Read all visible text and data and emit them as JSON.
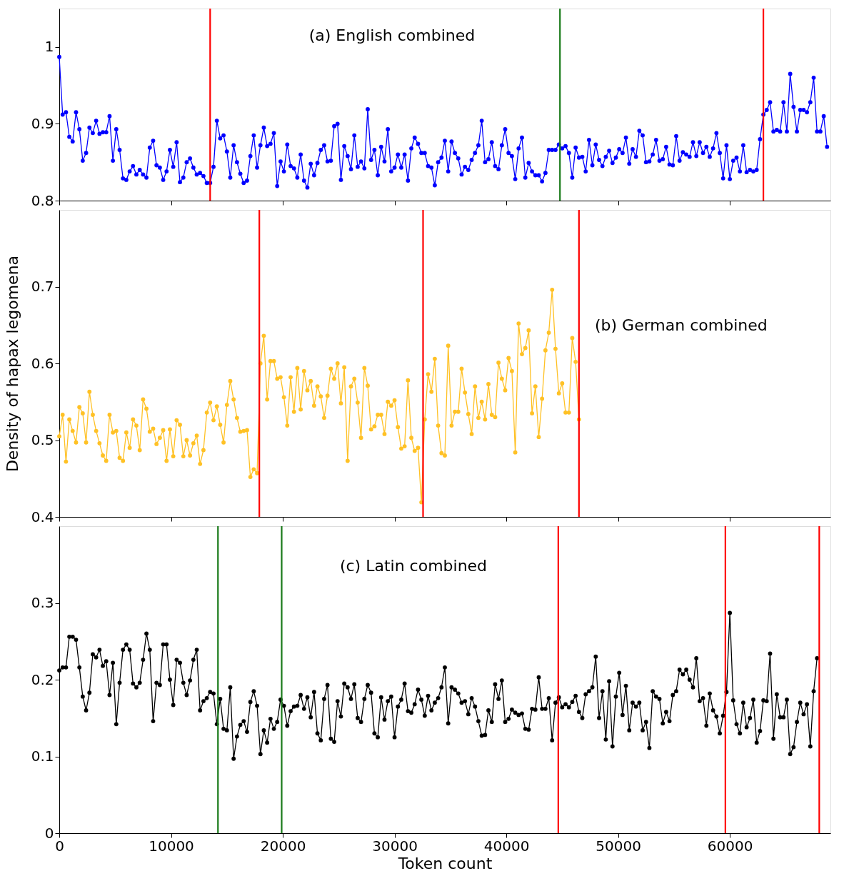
{
  "chart_data": [
    {
      "type": "line",
      "annotations": [
        "(a) English combined"
      ],
      "xlim": [
        0,
        69000
      ],
      "xticks": [
        0,
        10000,
        20000,
        30000,
        40000,
        50000,
        60000
      ],
      "ylim": [
        0.8,
        1.05
      ],
      "yticks": [
        0.8,
        0.9,
        1
      ],
      "tick_labels": "y",
      "grid": false,
      "marker": "circle",
      "line_style": "solid",
      "ref_lines": [
        {
          "axis": "x",
          "value": 13500,
          "color": "#ff0000"
        },
        {
          "axis": "x",
          "value": 44800,
          "color": "#1a7a1a"
        },
        {
          "axis": "x",
          "value": 63000,
          "color": "#ff0000"
        }
      ],
      "series": [
        {
          "color": "#0000ff",
          "x": [
            0,
            300,
            600,
            900,
            1200,
            1500,
            1800,
            2100,
            2400,
            2700,
            3000,
            3300,
            3600,
            3900,
            4200,
            4500,
            4800,
            5100,
            5400,
            5700,
            6000,
            6300,
            6600,
            6900,
            7200,
            7500,
            7800,
            8100,
            8400,
            8700,
            9000,
            9300,
            9600,
            9900,
            10200,
            10500,
            10800,
            11100,
            11400,
            11700,
            12000,
            12300,
            12600,
            12900,
            13200,
            13500,
            13800,
            14100,
            14400,
            14700,
            15000,
            15300,
            15600,
            15900,
            16200,
            16500,
            16800,
            17100,
            17400,
            17700,
            18000,
            18300,
            18600,
            18900,
            19200,
            19500,
            19800,
            20100,
            20400,
            20700,
            21000,
            21300,
            21600,
            21900,
            22200,
            22500,
            22800,
            23100,
            23400,
            23700,
            24000,
            24300,
            24600,
            24900,
            25200,
            25500,
            25800,
            26100,
            26400,
            26700,
            27000,
            27300,
            27600,
            27900,
            28200,
            28500,
            28800,
            29100,
            29400,
            29700,
            30000,
            30300,
            30600,
            30900,
            31200,
            31500,
            31800,
            32100,
            32400,
            32700,
            33000,
            33300,
            33600,
            33900,
            34200,
            34500,
            34800,
            35100,
            35400,
            35700,
            36000,
            36300,
            36600,
            36900,
            37200,
            37500,
            37800,
            38100,
            38400,
            38700,
            39000,
            39300,
            39600,
            39900,
            40200,
            40500,
            40800,
            41100,
            41400,
            41700,
            42000,
            42300,
            42600,
            42900,
            43200,
            43500,
            43800,
            44100,
            44400,
            44700,
            45000,
            45300,
            45600,
            45900,
            46200,
            46500,
            46800,
            47100,
            47400,
            47700,
            48000,
            48300,
            48600,
            48900,
            49200,
            49500,
            49800,
            50100,
            50400,
            50700,
            51000,
            51300,
            51600,
            51900,
            52200,
            52500,
            52800,
            53100,
            53400,
            53700,
            54000,
            54300,
            54600,
            54900,
            55200,
            55500,
            55800,
            56100,
            56400,
            56700,
            57000,
            57300,
            57600,
            57900,
            58200,
            58500,
            58800,
            59100,
            59400,
            59700,
            60000,
            60300,
            60600,
            60900,
            61200,
            61500,
            61800,
            62100,
            62400,
            62700,
            63000,
            63300,
            63600,
            63900,
            64200,
            64500,
            64800,
            65100,
            65400,
            65700,
            66000,
            66300,
            66600,
            66900,
            67200,
            67500,
            67800,
            68100,
            68400,
            68700
          ],
          "values": [
            0.987,
            0.912,
            0.915,
            0.883,
            0.877,
            0.915,
            0.893,
            0.852,
            0.862,
            0.895,
            0.888,
            0.904,
            0.887,
            0.889,
            0.889,
            0.91,
            0.852,
            0.893,
            0.866,
            0.829,
            0.827,
            0.838,
            0.845,
            0.834,
            0.84,
            0.834,
            0.83,
            0.869,
            0.878,
            0.846,
            0.843,
            0.827,
            0.838,
            0.866,
            0.844,
            0.876,
            0.824,
            0.83,
            0.85,
            0.855,
            0.843,
            0.834,
            0.836,
            0.832,
            0.823,
            0.823,
            0.844,
            0.904,
            0.881,
            0.885,
            0.864,
            0.83,
            0.872,
            0.85,
            0.835,
            0.823,
            0.826,
            0.858,
            0.885,
            0.843,
            0.872,
            0.895,
            0.871,
            0.874,
            0.888,
            0.819,
            0.851,
            0.838,
            0.873,
            0.845,
            0.842,
            0.83,
            0.86,
            0.826,
            0.817,
            0.848,
            0.833,
            0.849,
            0.866,
            0.872,
            0.851,
            0.852,
            0.897,
            0.9,
            0.827,
            0.871,
            0.858,
            0.841,
            0.885,
            0.844,
            0.851,
            0.842,
            0.919,
            0.853,
            0.866,
            0.833,
            0.87,
            0.851,
            0.893,
            0.838,
            0.843,
            0.86,
            0.843,
            0.86,
            0.826,
            0.868,
            0.882,
            0.874,
            0.862,
            0.862,
            0.845,
            0.843,
            0.82,
            0.85,
            0.856,
            0.878,
            0.838,
            0.877,
            0.862,
            0.855,
            0.834,
            0.844,
            0.84,
            0.853,
            0.862,
            0.872,
            0.904,
            0.85,
            0.854,
            0.876,
            0.845,
            0.841,
            0.872,
            0.893,
            0.862,
            0.858,
            0.828,
            0.868,
            0.882,
            0.83,
            0.849,
            0.838,
            0.833,
            0.833,
            0.825,
            0.836,
            0.866,
            0.866,
            0.866,
            0.873,
            0.868,
            0.871,
            0.862,
            0.83,
            0.869,
            0.856,
            0.857,
            0.838,
            0.879,
            0.846,
            0.873,
            0.853,
            0.845,
            0.857,
            0.865,
            0.849,
            0.856,
            0.867,
            0.862,
            0.882,
            0.848,
            0.867,
            0.857,
            0.891,
            0.885,
            0.85,
            0.851,
            0.86,
            0.879,
            0.852,
            0.854,
            0.87,
            0.847,
            0.846,
            0.884,
            0.852,
            0.863,
            0.86,
            0.857,
            0.876,
            0.858,
            0.876,
            0.862,
            0.87,
            0.857,
            0.868,
            0.888,
            0.862,
            0.829,
            0.872,
            0.828,
            0.852,
            0.856,
            0.838,
            0.872,
            0.837,
            0.84,
            0.838,
            0.84,
            0.88,
            0.912,
            0.918,
            0.928,
            0.89,
            0.892,
            0.89,
            0.928,
            0.89,
            0.965,
            0.922,
            0.89,
            0.918,
            0.918,
            0.915,
            0.928,
            0.96,
            0.89,
            0.89,
            0.91,
            0.87
          ]
        }
      ]
    },
    {
      "type": "line",
      "annotations": [
        "(b) German combined"
      ],
      "ylabel": "Density of hapax legomena",
      "xlim": [
        0,
        69000
      ],
      "xticks": [
        0,
        10000,
        20000,
        30000,
        40000,
        50000,
        60000
      ],
      "ylim": [
        0.4,
        0.8
      ],
      "yticks": [
        0.4,
        0.5,
        0.6,
        0.7
      ],
      "tick_labels": "y",
      "grid": false,
      "marker": "circle",
      "line_style": "solid",
      "ref_lines": [
        {
          "axis": "x",
          "value": 17900,
          "color": "#ff0000"
        },
        {
          "axis": "x",
          "value": 32550,
          "color": "#ff0000"
        },
        {
          "axis": "x",
          "value": 46500,
          "color": "#ff0000"
        }
      ],
      "series": [
        {
          "color": "#ffc125",
          "x": [
            0,
            300,
            600,
            900,
            1200,
            1500,
            1800,
            2100,
            2400,
            2700,
            3000,
            3300,
            3600,
            3900,
            4200,
            4500,
            4800,
            5100,
            5400,
            5700,
            6000,
            6300,
            6600,
            6900,
            7200,
            7500,
            7800,
            8100,
            8400,
            8700,
            9000,
            9300,
            9600,
            9900,
            10200,
            10500,
            10800,
            11100,
            11400,
            11700,
            12000,
            12300,
            12600,
            12900,
            13200,
            13500,
            13800,
            14100,
            14400,
            14700,
            15000,
            15300,
            15600,
            15900,
            16200,
            16500,
            16800,
            17100,
            17400,
            17700,
            18000,
            18300,
            18600,
            18900,
            19200,
            19500,
            19800,
            20100,
            20400,
            20700,
            21000,
            21300,
            21600,
            21900,
            22200,
            22500,
            22800,
            23100,
            23400,
            23700,
            24000,
            24300,
            24600,
            24900,
            25200,
            25500,
            25800,
            26100,
            26400,
            26700,
            27000,
            27300,
            27600,
            27900,
            28200,
            28500,
            28800,
            29100,
            29400,
            29700,
            30000,
            30300,
            30600,
            30900,
            31200,
            31500,
            31800,
            32100,
            32400,
            32700,
            33000,
            33300,
            33600,
            33900,
            34200,
            34500,
            34800,
            35100,
            35400,
            35700,
            36000,
            36300,
            36600,
            36900,
            37200,
            37500,
            37800,
            38100,
            38400,
            38700,
            39000,
            39300,
            39600,
            39900,
            40200,
            40500,
            40800,
            41100,
            41400,
            41700,
            42000,
            42300,
            42600,
            42900,
            43200,
            43500,
            43800,
            44100,
            44400,
            44700,
            45000,
            45300,
            45600,
            45900,
            46200,
            46500
          ],
          "values": [
            0.505,
            0.533,
            0.472,
            0.527,
            0.512,
            0.497,
            0.543,
            0.535,
            0.497,
            0.563,
            0.533,
            0.512,
            0.496,
            0.48,
            0.473,
            0.533,
            0.51,
            0.512,
            0.477,
            0.473,
            0.51,
            0.49,
            0.527,
            0.519,
            0.487,
            0.553,
            0.541,
            0.511,
            0.515,
            0.495,
            0.503,
            0.513,
            0.473,
            0.514,
            0.479,
            0.526,
            0.52,
            0.479,
            0.5,
            0.48,
            0.496,
            0.506,
            0.469,
            0.487,
            0.536,
            0.549,
            0.526,
            0.544,
            0.52,
            0.497,
            0.546,
            0.577,
            0.553,
            0.529,
            0.511,
            0.512,
            0.513,
            0.452,
            0.462,
            0.457,
            0.6,
            0.636,
            0.553,
            0.603,
            0.603,
            0.58,
            0.582,
            0.556,
            0.519,
            0.582,
            0.537,
            0.594,
            0.54,
            0.59,
            0.565,
            0.577,
            0.545,
            0.57,
            0.557,
            0.529,
            0.558,
            0.593,
            0.58,
            0.6,
            0.548,
            0.595,
            0.473,
            0.57,
            0.58,
            0.549,
            0.503,
            0.594,
            0.571,
            0.514,
            0.518,
            0.533,
            0.533,
            0.508,
            0.55,
            0.545,
            0.552,
            0.517,
            0.489,
            0.492,
            0.578,
            0.503,
            0.486,
            0.49,
            0.419,
            0.527,
            0.586,
            0.563,
            0.606,
            0.519,
            0.483,
            0.48,
            0.623,
            0.519,
            0.537,
            0.537,
            0.593,
            0.562,
            0.534,
            0.508,
            0.57,
            0.529,
            0.55,
            0.527,
            0.573,
            0.533,
            0.53,
            0.601,
            0.58,
            0.565,
            0.607,
            0.59,
            0.484,
            0.652,
            0.612,
            0.62,
            0.643,
            0.535,
            0.57,
            0.504,
            0.554,
            0.617,
            0.64,
            0.696,
            0.619,
            0.561,
            0.574,
            0.536,
            0.536,
            0.633,
            0.602,
            0.527
          ]
        }
      ]
    },
    {
      "type": "line",
      "annotations": [
        "(c) Latin combined"
      ],
      "xlabel": "Token count",
      "xlim": [
        0,
        69000
      ],
      "xticks": [
        0,
        10000,
        20000,
        30000,
        40000,
        50000,
        60000
      ],
      "ylim": [
        0,
        0.4
      ],
      "yticks": [
        0,
        0.1,
        0.2,
        0.3
      ],
      "grid": false,
      "marker": "circle",
      "line_style": "solid",
      "ref_lines": [
        {
          "axis": "x",
          "value": 14200,
          "color": "#1a7a1a"
        },
        {
          "axis": "x",
          "value": 19900,
          "color": "#1a7a1a"
        },
        {
          "axis": "x",
          "value": 44650,
          "color": "#ff0000"
        },
        {
          "axis": "x",
          "value": 59600,
          "color": "#ff0000"
        },
        {
          "axis": "x",
          "value": 68000,
          "color": "#ff0000"
        }
      ],
      "series": [
        {
          "color": "#000000",
          "x": [
            0,
            300,
            600,
            900,
            1200,
            1500,
            1800,
            2100,
            2400,
            2700,
            3000,
            3300,
            3600,
            3900,
            4200,
            4500,
            4800,
            5100,
            5400,
            5700,
            6000,
            6300,
            6600,
            6900,
            7200,
            7500,
            7800,
            8100,
            8400,
            8700,
            9000,
            9300,
            9600,
            9900,
            10200,
            10500,
            10800,
            11100,
            11400,
            11700,
            12000,
            12300,
            12600,
            12900,
            13200,
            13500,
            13800,
            14100,
            14400,
            14700,
            15000,
            15300,
            15600,
            15900,
            16200,
            16500,
            16800,
            17100,
            17400,
            17700,
            18000,
            18300,
            18600,
            18900,
            19200,
            19500,
            19800,
            20100,
            20400,
            20700,
            21000,
            21300,
            21600,
            21900,
            22200,
            22500,
            22800,
            23100,
            23400,
            23700,
            24000,
            24300,
            24600,
            24900,
            25200,
            25500,
            25800,
            26100,
            26400,
            26700,
            27000,
            27300,
            27600,
            27900,
            28200,
            28500,
            28800,
            29100,
            29400,
            29700,
            30000,
            30300,
            30600,
            30900,
            31200,
            31500,
            31800,
            32100,
            32400,
            32700,
            33000,
            33300,
            33600,
            33900,
            34200,
            34500,
            34800,
            35100,
            35400,
            35700,
            36000,
            36300,
            36600,
            36900,
            37200,
            37500,
            37800,
            38100,
            38400,
            38700,
            39000,
            39300,
            39600,
            39900,
            40200,
            40500,
            40800,
            41100,
            41400,
            41700,
            42000,
            42300,
            42600,
            42900,
            43200,
            43500,
            43800,
            44100,
            44400,
            44700,
            45000,
            45300,
            45600,
            45900,
            46200,
            46500,
            46800,
            47100,
            47400,
            47700,
            48000,
            48300,
            48600,
            48900,
            49200,
            49500,
            49800,
            50100,
            50400,
            50700,
            51000,
            51300,
            51600,
            51900,
            52200,
            52500,
            52800,
            53100,
            53400,
            53700,
            54000,
            54300,
            54600,
            54900,
            55200,
            55500,
            55800,
            56100,
            56400,
            56700,
            57000,
            57300,
            57600,
            57900,
            58200,
            58500,
            58800,
            59100,
            59400,
            59700,
            60000,
            60300,
            60600,
            60900,
            61200,
            61500,
            61800,
            62100,
            62400,
            62700,
            63000,
            63300,
            63600,
            63900,
            64200,
            64500,
            64800,
            65100,
            65400,
            65700,
            66000,
            66300,
            66600,
            66900,
            67200,
            67500,
            67800
          ],
          "values": [
            0.212,
            0.216,
            0.216,
            0.256,
            0.256,
            0.252,
            0.216,
            0.178,
            0.16,
            0.183,
            0.233,
            0.229,
            0.239,
            0.218,
            0.224,
            0.18,
            0.222,
            0.142,
            0.196,
            0.239,
            0.246,
            0.239,
            0.195,
            0.19,
            0.196,
            0.226,
            0.26,
            0.239,
            0.146,
            0.196,
            0.193,
            0.246,
            0.246,
            0.2,
            0.167,
            0.226,
            0.222,
            0.196,
            0.18,
            0.199,
            0.226,
            0.239,
            0.16,
            0.172,
            0.176,
            0.184,
            0.182,
            0.142,
            0.175,
            0.136,
            0.134,
            0.19,
            0.097,
            0.126,
            0.141,
            0.146,
            0.132,
            0.171,
            0.185,
            0.166,
            0.103,
            0.134,
            0.118,
            0.149,
            0.136,
            0.145,
            0.174,
            0.166,
            0.14,
            0.159,
            0.165,
            0.166,
            0.18,
            0.162,
            0.177,
            0.151,
            0.184,
            0.13,
            0.121,
            0.175,
            0.193,
            0.123,
            0.119,
            0.172,
            0.152,
            0.195,
            0.19,
            0.175,
            0.194,
            0.15,
            0.145,
            0.175,
            0.193,
            0.183,
            0.13,
            0.125,
            0.177,
            0.148,
            0.172,
            0.178,
            0.125,
            0.165,
            0.174,
            0.195,
            0.159,
            0.157,
            0.168,
            0.187,
            0.174,
            0.153,
            0.179,
            0.16,
            0.17,
            0.176,
            0.19,
            0.216,
            0.143,
            0.19,
            0.187,
            0.182,
            0.17,
            0.172,
            0.155,
            0.176,
            0.165,
            0.146,
            0.127,
            0.128,
            0.16,
            0.145,
            0.194,
            0.175,
            0.199,
            0.145,
            0.149,
            0.161,
            0.157,
            0.154,
            0.156,
            0.136,
            0.135,
            0.162,
            0.161,
            0.203,
            0.162,
            0.162,
            0.176,
            0.121,
            0.17,
            0.177,
            0.164,
            0.168,
            0.164,
            0.171,
            0.179,
            0.158,
            0.15,
            0.181,
            0.185,
            0.19,
            0.23,
            0.15,
            0.185,
            0.122,
            0.198,
            0.113,
            0.178,
            0.209,
            0.154,
            0.192,
            0.134,
            0.17,
            0.165,
            0.17,
            0.134,
            0.145,
            0.111,
            0.185,
            0.178,
            0.175,
            0.143,
            0.158,
            0.146,
            0.18,
            0.185,
            0.213,
            0.207,
            0.213,
            0.2,
            0.19,
            0.228,
            0.172,
            0.176,
            0.14,
            0.182,
            0.16,
            0.152,
            0.13,
            0.153,
            0.184,
            0.287,
            0.173,
            0.142,
            0.13,
            0.17,
            0.138,
            0.15,
            0.174,
            0.118,
            0.133,
            0.173,
            0.172,
            0.234,
            0.123,
            0.181,
            0.151,
            0.151,
            0.174,
            0.103,
            0.112,
            0.145,
            0.17,
            0.155,
            0.168,
            0.113,
            0.185,
            0.228
          ]
        }
      ]
    }
  ]
}
